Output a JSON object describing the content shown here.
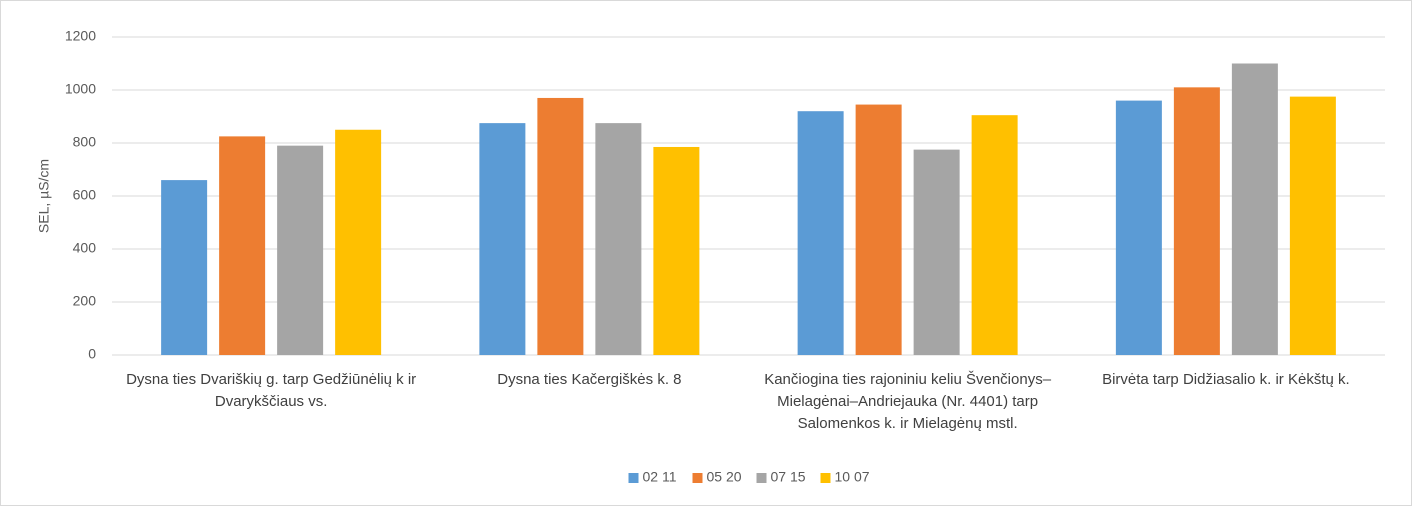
{
  "chart_data": {
    "type": "bar",
    "y_label": "SEL, µS/cm",
    "categories": [
      "Dysna ties Dvariškių g. tarp Gedžiūnėlių k ir Dvarykščiaus vs.",
      "Dysna ties Kačergiškės k. 8",
      "Kančiogina ties rajoniniu keliu Švenčionys–Mielagėnai–Andriejauka (Nr. 4401) tarp Salomenkos k. ir Mielagėnų mstl.",
      "Birvėta tarp Didžiasalio k. ir Kėkštų k."
    ],
    "series": [
      {
        "name": "02 11",
        "color": "#5b9bd5",
        "values": [
          660,
          875,
          920,
          960
        ]
      },
      {
        "name": "05 20",
        "color": "#ed7d31",
        "values": [
          825,
          970,
          945,
          1010
        ]
      },
      {
        "name": "07 15",
        "color": "#a5a5a5",
        "values": [
          790,
          875,
          775,
          1100
        ]
      },
      {
        "name": "10 07",
        "color": "#ffc000",
        "values": [
          850,
          785,
          905,
          975
        ]
      }
    ],
    "ylim": [
      0,
      1200
    ],
    "yticks": [
      0,
      200,
      400,
      600,
      800,
      1000,
      1200
    ],
    "grid": true,
    "legend": "bottom"
  }
}
